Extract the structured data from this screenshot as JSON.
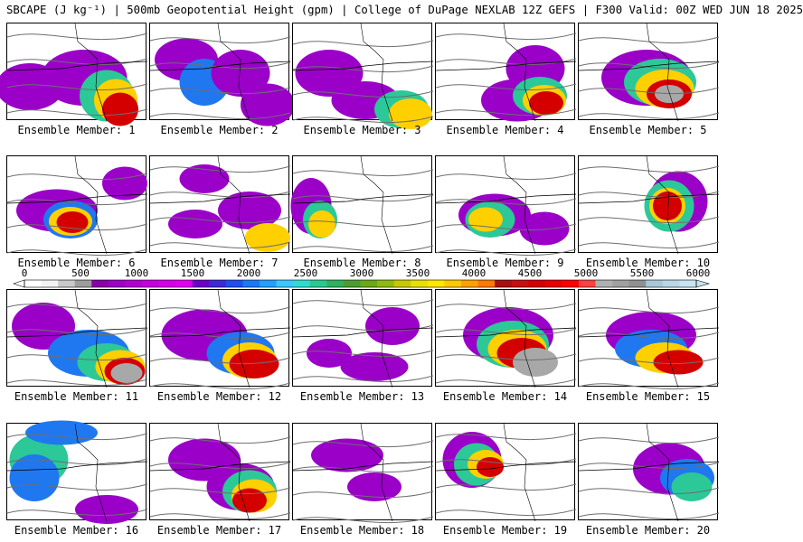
{
  "header": {
    "title": "SBCAPE (J kg⁻¹) | 500mb Geopotential Height (gpm) | College of DuPage NEXLAB 12Z GEFS | F300 Valid: 00Z WED JUN 18 2025"
  },
  "colors": {
    "scale": [
      "#ffffff",
      "#f2f2f2",
      "#c9c9c9",
      "#9d9d9d",
      "#8a00a8",
      "#9b00c4",
      "#b000d0",
      "#c400dc",
      "#d400e8",
      "#e000f0",
      "#6a00c8",
      "#3c2ad6",
      "#1f4df0",
      "#1a78f5",
      "#22a0ff",
      "#3cc8ff",
      "#2ddcd0",
      "#28c890",
      "#30b060",
      "#4a9e30",
      "#6aa818",
      "#8cba10",
      "#c8c800",
      "#e8e000",
      "#ffe800",
      "#ffc800",
      "#ffa000",
      "#ff7800",
      "#a81010",
      "#c81010",
      "#d40000",
      "#e80000",
      "#ff0000",
      "#ff4040",
      "#b0b0b0",
      "#a0a0a0",
      "#909090",
      "#a8c8d8",
      "#b8d8e8",
      "#c8e4f0"
    ],
    "red_core": "#cc0000",
    "gray_core": "#a8a8a8"
  },
  "colorbar": {
    "ticks": [
      "0",
      "500",
      "1000",
      "1500",
      "2000",
      "2500",
      "3000",
      "3500",
      "4000",
      "4500",
      "5000",
      "5500",
      "6000"
    ]
  },
  "members": [
    {
      "label": "Ensemble Member: 1",
      "blobs": [
        [
          25,
          70,
          55,
          40,
          "p"
        ],
        [
          85,
          60,
          75,
          50,
          "p"
        ],
        [
          110,
          80,
          40,
          45,
          "g"
        ],
        [
          120,
          85,
          28,
          35,
          "y"
        ],
        [
          125,
          95,
          20,
          25,
          "r"
        ]
      ]
    },
    {
      "label": "Ensemble Member: 2",
      "blobs": [
        [
          40,
          40,
          50,
          35,
          "p"
        ],
        [
          60,
          65,
          35,
          40,
          "b"
        ],
        [
          100,
          55,
          45,
          40,
          "p"
        ],
        [
          130,
          90,
          40,
          35,
          "p"
        ]
      ]
    },
    {
      "label": "Ensemble Member: 3",
      "blobs": [
        [
          40,
          55,
          55,
          40,
          "p"
        ],
        [
          80,
          85,
          55,
          30,
          "p"
        ],
        [
          120,
          95,
          40,
          30,
          "g"
        ],
        [
          130,
          100,
          28,
          22,
          "y"
        ]
      ]
    },
    {
      "label": "Ensemble Member: 4",
      "blobs": [
        [
          110,
          50,
          45,
          40,
          "p"
        ],
        [
          90,
          85,
          60,
          35,
          "p"
        ],
        [
          115,
          80,
          40,
          30,
          "g"
        ],
        [
          120,
          85,
          28,
          22,
          "y"
        ],
        [
          122,
          88,
          18,
          14,
          "r"
        ]
      ]
    },
    {
      "label": "Ensemble Member: 5",
      "blobs": [
        [
          75,
          60,
          80,
          50,
          "p"
        ],
        [
          90,
          65,
          60,
          40,
          "g"
        ],
        [
          95,
          72,
          45,
          30,
          "y"
        ],
        [
          100,
          78,
          30,
          20,
          "r"
        ],
        [
          100,
          78,
          12,
          8,
          "x"
        ]
      ]
    },
    {
      "label": "Ensemble Member: 6",
      "blobs": [
        [
          55,
          60,
          70,
          35,
          "p"
        ],
        [
          70,
          70,
          40,
          30,
          "b"
        ],
        [
          70,
          72,
          28,
          20,
          "y"
        ],
        [
          72,
          73,
          15,
          12,
          "r"
        ],
        [
          130,
          30,
          30,
          25,
          "p"
        ]
      ]
    },
    {
      "label": "Ensemble Member: 7",
      "blobs": [
        [
          60,
          25,
          35,
          20,
          "p"
        ],
        [
          110,
          60,
          50,
          30,
          "p"
        ],
        [
          130,
          90,
          30,
          20,
          "y"
        ],
        [
          50,
          75,
          40,
          20,
          "p"
        ]
      ]
    },
    {
      "label": "Ensemble Member: 8",
      "blobs": [
        [
          20,
          55,
          25,
          50,
          "p"
        ],
        [
          30,
          70,
          18,
          30,
          "g"
        ],
        [
          32,
          75,
          10,
          18,
          "y"
        ]
      ]
    },
    {
      "label": "Ensemble Member: 9",
      "blobs": [
        [
          65,
          65,
          60,
          35,
          "p"
        ],
        [
          60,
          70,
          35,
          28,
          "g"
        ],
        [
          55,
          70,
          18,
          15,
          "y"
        ],
        [
          120,
          80,
          35,
          25,
          "p"
        ]
      ]
    },
    {
      "label": "Ensemble Member: 10",
      "blobs": [
        [
          110,
          50,
          45,
          55,
          "p"
        ],
        [
          100,
          55,
          35,
          45,
          "g"
        ],
        [
          98,
          55,
          20,
          28,
          "y"
        ],
        [
          98,
          55,
          12,
          20,
          "r"
        ]
      ]
    },
    {
      "label": "Ensemble Member: 11",
      "blobs": [
        [
          40,
          40,
          50,
          40,
          "p"
        ],
        [
          90,
          70,
          70,
          40,
          "b"
        ],
        [
          110,
          80,
          45,
          30,
          "g"
        ],
        [
          125,
          85,
          35,
          25,
          "y"
        ],
        [
          130,
          90,
          25,
          18,
          "r"
        ],
        [
          132,
          92,
          15,
          10,
          "x"
        ]
      ]
    },
    {
      "label": "Ensemble Member: 12",
      "blobs": [
        [
          60,
          50,
          75,
          45,
          "p"
        ],
        [
          100,
          70,
          55,
          35,
          "b"
        ],
        [
          110,
          78,
          40,
          28,
          "y"
        ],
        [
          115,
          82,
          35,
          20,
          "r"
        ]
      ]
    },
    {
      "label": "Ensemble Member: 13",
      "blobs": [
        [
          110,
          40,
          40,
          30,
          "p"
        ],
        [
          90,
          85,
          55,
          20,
          "p"
        ],
        [
          40,
          70,
          30,
          20,
          "p"
        ]
      ]
    },
    {
      "label": "Ensemble Member: 14",
      "blobs": [
        [
          80,
          50,
          80,
          50,
          "p"
        ],
        [
          85,
          60,
          60,
          40,
          "g"
        ],
        [
          90,
          65,
          45,
          30,
          "y"
        ],
        [
          95,
          70,
          35,
          22,
          "r"
        ],
        [
          110,
          80,
          30,
          20,
          "x"
        ]
      ]
    },
    {
      "label": "Ensemble Member: 15",
      "blobs": [
        [
          80,
          50,
          80,
          40,
          "p"
        ],
        [
          80,
          65,
          60,
          30,
          "b"
        ],
        [
          95,
          75,
          45,
          22,
          "y"
        ],
        [
          110,
          80,
          35,
          15,
          "r"
        ]
      ]
    },
    {
      "label": "Ensemble Member: 16",
      "blobs": [
        [
          35,
          40,
          45,
          45,
          "g"
        ],
        [
          30,
          60,
          35,
          40,
          "b"
        ],
        [
          110,
          95,
          50,
          20,
          "p"
        ],
        [
          60,
          10,
          60,
          15,
          "b"
        ]
      ]
    },
    {
      "label": "Ensemble Member: 17",
      "blobs": [
        [
          60,
          40,
          60,
          35,
          "p"
        ],
        [
          100,
          70,
          55,
          40,
          "p"
        ],
        [
          110,
          75,
          40,
          35,
          "g"
        ],
        [
          115,
          80,
          30,
          25,
          "y"
        ],
        [
          110,
          85,
          18,
          15,
          "r"
        ]
      ]
    },
    {
      "label": "Ensemble Member: 18",
      "blobs": [
        [
          60,
          35,
          60,
          25,
          "p"
        ],
        [
          90,
          70,
          40,
          20,
          "p"
        ]
      ]
    },
    {
      "label": "Ensemble Member: 19",
      "blobs": [
        [
          40,
          40,
          45,
          50,
          "p"
        ],
        [
          45,
          45,
          30,
          35,
          "g"
        ],
        [
          55,
          45,
          20,
          20,
          "y"
        ],
        [
          60,
          48,
          10,
          10,
          "r"
        ]
      ]
    },
    {
      "label": "Ensemble Member: 20",
      "blobs": [
        [
          100,
          50,
          60,
          45,
          "p"
        ],
        [
          120,
          60,
          40,
          30,
          "b"
        ],
        [
          125,
          70,
          25,
          20,
          "g"
        ]
      ]
    }
  ]
}
